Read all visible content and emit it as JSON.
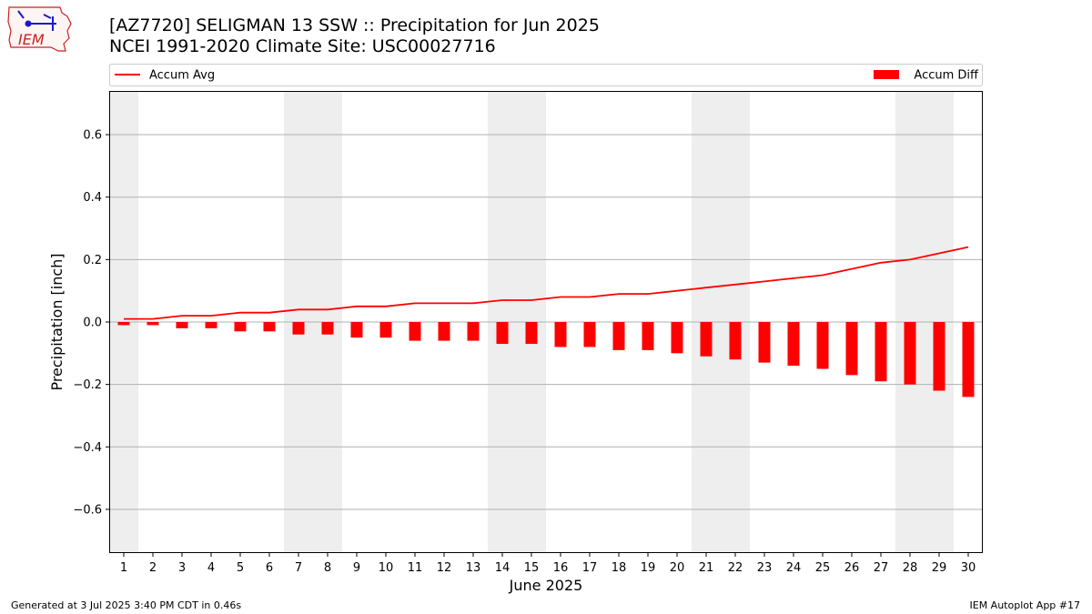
{
  "logo": {
    "text": "IEM",
    "accent": "#cc2222",
    "icon_color": "#1a1acc"
  },
  "title": {
    "line1": "[AZ7720] SELIGMAN 13 SSW :: Precipitation for Jun 2025",
    "line2": "NCEI 1991-2020 Climate Site: USC00027716"
  },
  "footer": {
    "left": "Generated at 3 Jul 2025 3:40 PM CDT in 0.46s",
    "right": "IEM Autoplot App #17"
  },
  "chart_data": {
    "type": "bar",
    "title": "[AZ7720] SELIGMAN 13 SSW :: Precipitation for Jun 2025",
    "xlabel": "June 2025",
    "ylabel": "Precipitation [inch]",
    "ylim": [
      -0.74,
      0.74
    ],
    "yticks": [
      -0.6,
      -0.4,
      -0.2,
      0.0,
      0.2,
      0.4,
      0.6
    ],
    "ytick_labels": [
      "−0.6",
      "−0.4",
      "−0.2",
      "0.0",
      "0.2",
      "0.4",
      "0.6"
    ],
    "grid": "horizontal",
    "legend_placement": "top, above plot",
    "categories": [
      "1",
      "2",
      "3",
      "4",
      "5",
      "6",
      "7",
      "8",
      "9",
      "10",
      "11",
      "12",
      "13",
      "14",
      "15",
      "16",
      "17",
      "18",
      "19",
      "20",
      "21",
      "22",
      "23",
      "24",
      "25",
      "26",
      "27",
      "28",
      "29",
      "30"
    ],
    "weekend_shading": [
      [
        1,
        1
      ],
      [
        7,
        8
      ],
      [
        14,
        15
      ],
      [
        21,
        22
      ],
      [
        28,
        29
      ]
    ],
    "shade_color": "#eeeeee",
    "series": [
      {
        "name": "Accum Avg",
        "kind": "line",
        "color": "#ff0000",
        "values": [
          0.01,
          0.01,
          0.02,
          0.02,
          0.03,
          0.03,
          0.04,
          0.04,
          0.05,
          0.05,
          0.06,
          0.06,
          0.06,
          0.07,
          0.07,
          0.08,
          0.08,
          0.09,
          0.09,
          0.1,
          0.11,
          0.12,
          0.13,
          0.14,
          0.15,
          0.17,
          0.19,
          0.2,
          0.22,
          0.24
        ]
      },
      {
        "name": "Accum Diff",
        "kind": "bar",
        "color": "#ff0000",
        "values": [
          -0.01,
          -0.01,
          -0.02,
          -0.02,
          -0.03,
          -0.03,
          -0.04,
          -0.04,
          -0.05,
          -0.05,
          -0.06,
          -0.06,
          -0.06,
          -0.07,
          -0.07,
          -0.08,
          -0.08,
          -0.09,
          -0.09,
          -0.1,
          -0.11,
          -0.12,
          -0.13,
          -0.14,
          -0.15,
          -0.17,
          -0.19,
          -0.2,
          -0.22,
          -0.24
        ]
      }
    ]
  }
}
